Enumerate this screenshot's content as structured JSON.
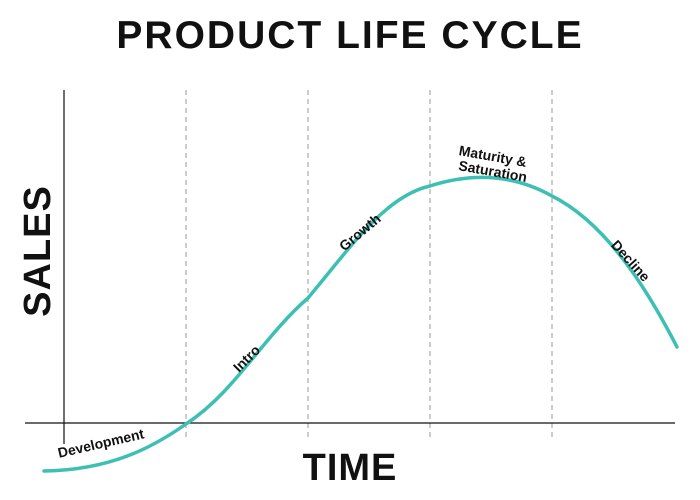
{
  "title": "PRODUCT LIFE CYCLE",
  "y_axis_label": "SALES",
  "x_axis_label": "TIME",
  "stages": [
    "Development",
    "Intro",
    "Growth",
    "Maturity &",
    "Saturation",
    "Decline"
  ],
  "colors": {
    "curve": "#3ebfb3",
    "axis": "#111111",
    "divider": "#bbbbbb",
    "text": "#111111"
  }
}
